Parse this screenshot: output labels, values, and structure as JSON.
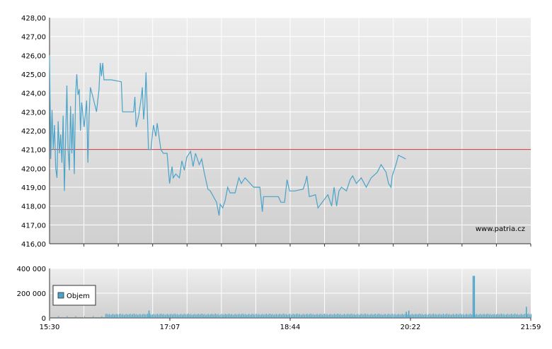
{
  "watermark": "www.patria.cz",
  "colors": {
    "price_line": "#4aa3c9",
    "reference_line": "#cc3333",
    "volume_bar": "#4aa3c9",
    "grid": "#ffffff",
    "plot_bg_top": "#eeeeee",
    "plot_bg_bottom": "#d0d0d0"
  },
  "chart_data": [
    {
      "type": "line",
      "name": "price",
      "ylim": [
        416,
        428
      ],
      "yticks": [
        "416,00",
        "417,00",
        "418,00",
        "419,00",
        "420,00",
        "421,00",
        "422,00",
        "423,00",
        "424,00",
        "425,00",
        "426,00",
        "427,00",
        "428,00"
      ],
      "reference_value": 421.0,
      "x_time_range": [
        "15:30",
        "21:59"
      ],
      "grid": true,
      "series": [
        {
          "values_by_time": [
            [
              "15:30",
              426.0
            ],
            [
              "15:31",
              420.5
            ],
            [
              "15:32",
              423.1
            ],
            [
              "15:33",
              421.0
            ],
            [
              "15:34",
              422.3
            ],
            [
              "15:35",
              420.0
            ],
            [
              "15:36",
              419.5
            ],
            [
              "15:37",
              422.5
            ],
            [
              "15:38",
              420.8
            ],
            [
              "15:39",
              421.8
            ],
            [
              "15:40",
              420.3
            ],
            [
              "15:41",
              422.8
            ],
            [
              "15:42",
              418.8
            ],
            [
              "15:43",
              421.5
            ],
            [
              "15:44",
              424.4
            ],
            [
              "15:45",
              421.0
            ],
            [
              "15:46",
              419.9
            ],
            [
              "15:47",
              423.3
            ],
            [
              "15:48",
              420.8
            ],
            [
              "15:49",
              422.9
            ],
            [
              "15:50",
              419.7
            ],
            [
              "15:51",
              423.8
            ],
            [
              "15:52",
              425.0
            ],
            [
              "15:53",
              423.9
            ],
            [
              "15:54",
              424.2
            ],
            [
              "15:55",
              422.0
            ],
            [
              "15:56",
              423.5
            ],
            [
              "15:58",
              422.2
            ],
            [
              "16:00",
              423.6
            ],
            [
              "16:01",
              420.3
            ],
            [
              "16:02",
              422.8
            ],
            [
              "16:03",
              424.3
            ],
            [
              "16:05",
              423.8
            ],
            [
              "16:08",
              423.0
            ],
            [
              "16:10",
              424.2
            ],
            [
              "16:11",
              425.6
            ],
            [
              "16:12",
              424.9
            ],
            [
              "16:13",
              425.6
            ],
            [
              "16:14",
              424.7
            ],
            [
              "16:20",
              424.7
            ],
            [
              "16:28",
              424.6
            ],
            [
              "16:29",
              423.0
            ],
            [
              "16:38",
              423.0
            ],
            [
              "16:39",
              423.8
            ],
            [
              "16:40",
              422.2
            ],
            [
              "16:42",
              422.8
            ],
            [
              "16:44",
              423.7
            ],
            [
              "16:45",
              424.3
            ],
            [
              "16:46",
              422.6
            ],
            [
              "16:47",
              423.3
            ],
            [
              "16:48",
              425.1
            ],
            [
              "16:49",
              423.1
            ],
            [
              "16:50",
              421.0
            ],
            [
              "16:52",
              421.0
            ],
            [
              "16:54",
              422.3
            ],
            [
              "16:56",
              421.7
            ],
            [
              "16:57",
              422.4
            ],
            [
              "17:00",
              421.0
            ],
            [
              "17:02",
              420.8
            ],
            [
              "17:05",
              420.8
            ],
            [
              "17:07",
              419.2
            ],
            [
              "17:09",
              420.1
            ],
            [
              "17:10",
              419.5
            ],
            [
              "17:12",
              419.7
            ],
            [
              "17:15",
              419.5
            ],
            [
              "17:17",
              420.4
            ],
            [
              "17:19",
              419.9
            ],
            [
              "17:21",
              420.6
            ],
            [
              "17:24",
              420.9
            ],
            [
              "17:26",
              420.1
            ],
            [
              "17:28",
              420.8
            ],
            [
              "17:31",
              420.2
            ],
            [
              "17:33",
              420.5
            ],
            [
              "17:35",
              419.8
            ],
            [
              "17:38",
              418.9
            ],
            [
              "17:40",
              418.8
            ],
            [
              "17:45",
              418.2
            ],
            [
              "17:47",
              417.5
            ],
            [
              "17:48",
              418.1
            ],
            [
              "17:50",
              417.9
            ],
            [
              "17:52",
              418.3
            ],
            [
              "17:54",
              419.0
            ],
            [
              "17:56",
              418.7
            ],
            [
              "18:00",
              418.7
            ],
            [
              "18:03",
              419.5
            ],
            [
              "18:05",
              419.2
            ],
            [
              "18:08",
              419.5
            ],
            [
              "18:15",
              419.0
            ],
            [
              "18:20",
              419.0
            ],
            [
              "18:22",
              417.7
            ],
            [
              "18:23",
              418.5
            ],
            [
              "18:35",
              418.5
            ],
            [
              "18:37",
              418.2
            ],
            [
              "18:40",
              418.2
            ],
            [
              "18:42",
              419.4
            ],
            [
              "18:44",
              418.8
            ],
            [
              "18:48",
              418.8
            ],
            [
              "18:55",
              418.9
            ],
            [
              "18:57",
              419.3
            ],
            [
              "18:58",
              419.6
            ],
            [
              "19:00",
              418.5
            ],
            [
              "19:05",
              418.6
            ],
            [
              "19:07",
              417.9
            ],
            [
              "19:15",
              418.6
            ],
            [
              "19:18",
              418.0
            ],
            [
              "19:20",
              419.0
            ],
            [
              "19:22",
              418.0
            ],
            [
              "19:24",
              418.8
            ],
            [
              "19:26",
              419.0
            ],
            [
              "19:30",
              418.8
            ],
            [
              "19:33",
              419.4
            ],
            [
              "19:35",
              419.6
            ],
            [
              "19:38",
              419.2
            ],
            [
              "19:42",
              419.5
            ],
            [
              "19:46",
              419.0
            ],
            [
              "19:50",
              419.5
            ],
            [
              "19:55",
              419.8
            ],
            [
              "19:58",
              420.2
            ],
            [
              "20:02",
              419.8
            ],
            [
              "20:04",
              419.2
            ],
            [
              "20:06",
              419.0
            ],
            [
              "20:07",
              419.6
            ],
            [
              "20:10",
              420.2
            ],
            [
              "20:12",
              420.7
            ],
            [
              "20:15",
              420.6
            ],
            [
              "20:18",
              420.5
            ]
          ]
        }
      ]
    },
    {
      "type": "bar",
      "name": "volume",
      "legend_label": "Objem",
      "ylim": [
        0,
        400000
      ],
      "yticks": [
        "0",
        "200 000",
        "400 000"
      ],
      "x_ticks": [
        "15:30",
        "17:07",
        "18:44",
        "20:22",
        "21:59"
      ],
      "grid": true,
      "notable_values": [
        {
          "time": "16:50",
          "value": 60000
        },
        {
          "time": "20:18",
          "value": 50000
        },
        {
          "time": "20:20",
          "value": 60000
        },
        {
          "time": "21:12",
          "value": 340000
        },
        {
          "time": "21:13",
          "value": 340000
        },
        {
          "time": "21:55",
          "value": 90000
        }
      ],
      "baseline_value": 35000
    }
  ]
}
